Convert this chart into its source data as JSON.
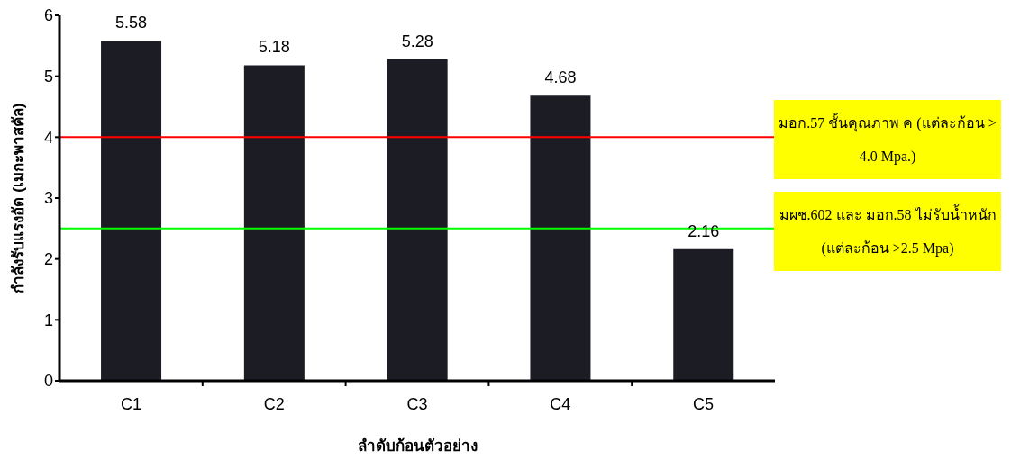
{
  "chart_data": {
    "type": "bar",
    "categories": [
      "C1",
      "C2",
      "C3",
      "C4",
      "C5"
    ],
    "values": [
      5.58,
      5.18,
      5.28,
      4.68,
      2.16
    ],
    "color": "#1c1c24",
    "xlabel": "ลำดับก้อนตัวอย่าง",
    "ylabel": "กำลังรับแรงอัด (เมกะพาสคัล)",
    "ylim": [
      0,
      6
    ],
    "yticks": [
      0,
      1,
      2,
      3,
      4,
      5,
      6
    ],
    "data_labels": true,
    "ref_lines": [
      {
        "axis": "y",
        "value": 4,
        "label": "มอก.57 ชั้นคุณภาพ ค (แต่ละก้อน > 4.0 Mpa.)",
        "color": "#ff0000"
      },
      {
        "axis": "y",
        "value": 2.5,
        "label": "มผช.602 และ มอก.58 ไม่รับน้ำหนัก (แต่ละก้อน >2.5 Mpa)",
        "color": "#00ff00"
      }
    ]
  }
}
